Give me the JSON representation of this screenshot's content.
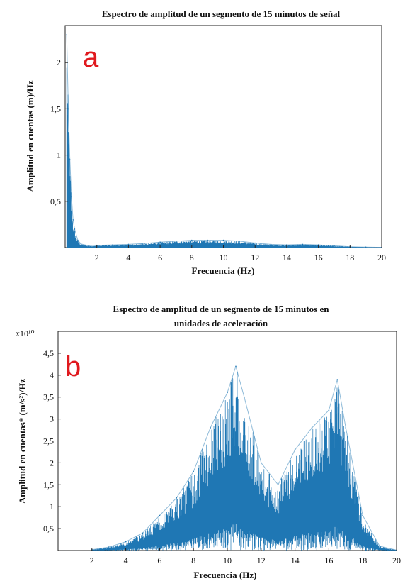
{
  "chart_data": [
    {
      "type": "line",
      "panel_label": "a",
      "panel_label_color": "#e0191e",
      "title": "Espectro de amplitud de un segmento de 15 minutos de señal",
      "xlabel": "Frecuencia (Hz)",
      "ylabel": "Amplitud en cuentas (m)/Hz",
      "xlim": [
        0,
        20
      ],
      "ylim": [
        0,
        2.4
      ],
      "x_ticks": [
        2,
        4,
        6,
        8,
        10,
        12,
        14,
        16,
        18,
        20
      ],
      "y_ticks": [
        0.5,
        1,
        1.5,
        2
      ],
      "y_tick_labels": [
        "0,5",
        "1",
        "1,5",
        "2"
      ],
      "grid": false,
      "color": "#1f77b4",
      "series": [
        {
          "x": [
            0.1,
            0.2,
            0.3,
            0.4,
            0.5,
            0.6,
            0.8,
            1,
            1.5,
            2,
            3,
            4,
            5,
            6,
            7,
            8,
            9,
            10,
            11,
            12,
            13,
            14,
            15,
            16,
            17,
            18,
            19,
            20
          ],
          "y": [
            2.3,
            1.5,
            0.95,
            0.55,
            0.3,
            0.2,
            0.08,
            0.04,
            0.02,
            0.025,
            0.03,
            0.035,
            0.045,
            0.06,
            0.07,
            0.08,
            0.08,
            0.08,
            0.07,
            0.05,
            0.035,
            0.03,
            0.035,
            0.03,
            0.02,
            0.01,
            0.005,
            0.003
          ]
        }
      ]
    },
    {
      "type": "line",
      "panel_label": "b",
      "panel_label_color": "#e0191e",
      "title": [
        "Espectro de amplitud de un segmento de 15 minutos en",
        "unidades de aceleración"
      ],
      "xlabel": "Frecuencia (Hz)",
      "ylabel": "Amplitud en cuentas* (m/s²)/Hz",
      "y_multiplier": "x10¹⁰",
      "xlim": [
        0,
        20
      ],
      "ylim": [
        0,
        5
      ],
      "x_ticks": [
        2,
        4,
        6,
        8,
        10,
        12,
        14,
        16,
        18,
        20
      ],
      "y_ticks": [
        0.5,
        1,
        1.5,
        2,
        2.5,
        3,
        3.5,
        4,
        4.5
      ],
      "y_tick_labels": [
        "0,5",
        "1",
        "1,5",
        "2",
        "2,5",
        "3",
        "3,5",
        "4",
        "4,5"
      ],
      "grid": false,
      "color": "#1f77b4",
      "series": [
        {
          "x": [
            2,
            3,
            4,
            5,
            6,
            7,
            8,
            9,
            10,
            10.5,
            11,
            12,
            13,
            14,
            15,
            16,
            16.5,
            17,
            18,
            19,
            20
          ],
          "y": [
            0.02,
            0.08,
            0.2,
            0.4,
            0.8,
            1.2,
            1.8,
            2.8,
            3.6,
            4.2,
            3.5,
            2.0,
            1.5,
            2.3,
            2.8,
            3.2,
            3.9,
            2.8,
            0.8,
            0.1,
            0.01
          ]
        }
      ]
    }
  ]
}
